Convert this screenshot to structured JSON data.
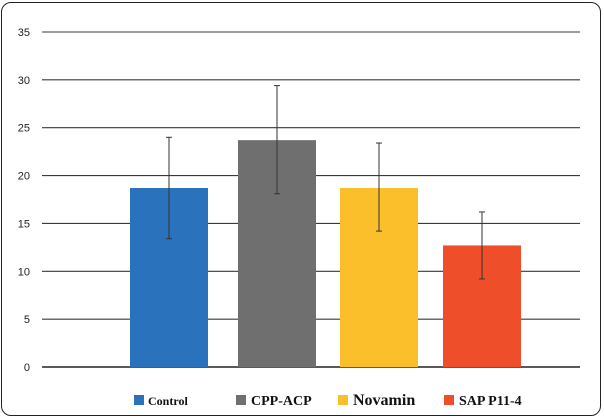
{
  "chart_data": {
    "type": "bar",
    "categories": [
      "Control",
      "CPP-ACP",
      "Novamin",
      "SAP P11-4"
    ],
    "values": [
      18.7,
      23.7,
      18.7,
      12.7
    ],
    "error_bars": [
      [
        13.4,
        24.0
      ],
      [
        18.1,
        29.4
      ],
      [
        14.2,
        23.4
      ],
      [
        9.2,
        16.2
      ]
    ],
    "colors": [
      "#2a72bb",
      "#6f6f6f",
      "#fbbf2c",
      "#ee4f2a"
    ],
    "ylim": [
      0,
      35
    ],
    "yticks": [
      0,
      5,
      10,
      15,
      20,
      25,
      30,
      35
    ],
    "grid": true,
    "legend_position": "bottom",
    "legend": [
      {
        "label": "Control",
        "color": "#2a72bb"
      },
      {
        "label": "CPP-ACP",
        "color": "#6f6f6f"
      },
      {
        "label": "Novamin",
        "color": "#fbbf2c"
      },
      {
        "label": "SAP P11-4",
        "color": "#ee4f2a"
      }
    ]
  }
}
